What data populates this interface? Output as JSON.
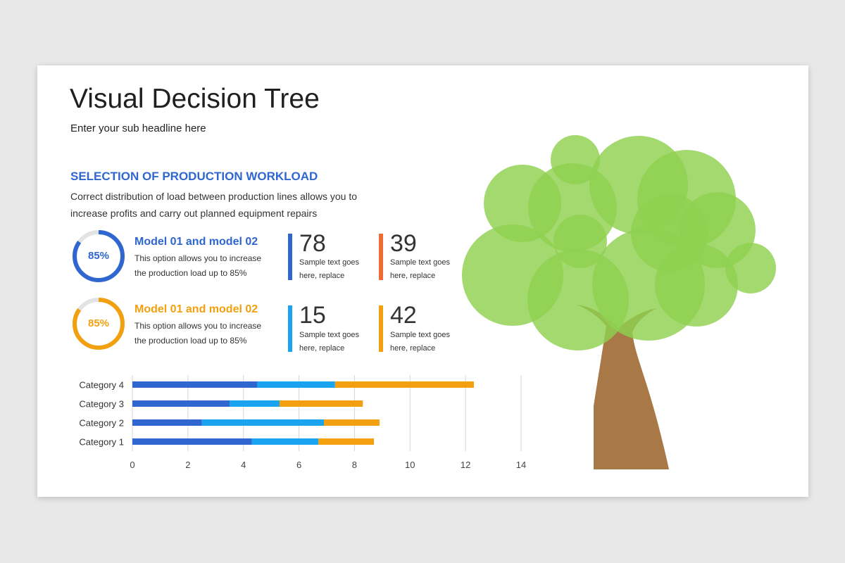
{
  "title": "Visual Decision Tree",
  "subtitle": "Enter your sub headline here",
  "section": {
    "title": "SELECTION OF PRODUCTION WORKLOAD",
    "description": "Correct distribution of load between production lines allows you to increase profits and carry out planned equipment repairs"
  },
  "models": [
    {
      "percent_label": "85%",
      "percent": 85,
      "title": "Model 01 and model 02",
      "description": "This option allows you to increase the production load up to 85%",
      "color": "#2f66cf"
    },
    {
      "percent_label": "85%",
      "percent": 85,
      "title": "Model 01 and model 02",
      "description": "This option allows you to increase the production load up to 85%",
      "color": "#f2a00f"
    }
  ],
  "stats": [
    {
      "value": "78",
      "description": "Sample text goes here, replace",
      "color": "#2f66cf"
    },
    {
      "value": "39",
      "description": "Sample text goes here, replace",
      "color": "#f06a35"
    },
    {
      "value": "15",
      "description": "Sample text goes here, replace",
      "color": "#1aa3ef"
    },
    {
      "value": "42",
      "description": "Sample text goes here, replace",
      "color": "#f2a00f"
    }
  ],
  "chart_data": {
    "type": "bar",
    "orientation": "horizontal",
    "stacked": true,
    "categories": [
      "Category 1",
      "Category 2",
      "Category 3",
      "Category 4"
    ],
    "series": [
      {
        "values": [
          4.3,
          2.5,
          3.5,
          4.5
        ],
        "color": "#2f66cf"
      },
      {
        "values": [
          2.4,
          4.4,
          1.8,
          2.8
        ],
        "color": "#1aa3ef"
      },
      {
        "values": [
          2.0,
          2.0,
          3.0,
          5.0
        ],
        "color": "#f2a00f"
      }
    ],
    "xlim": [
      0,
      14
    ],
    "xticks": [
      0,
      2,
      4,
      6,
      8,
      10,
      12,
      14
    ],
    "grid": "vertical"
  },
  "colors": {
    "tree_leaves": "#8fd14f",
    "tree_trunk": "#a87846"
  }
}
